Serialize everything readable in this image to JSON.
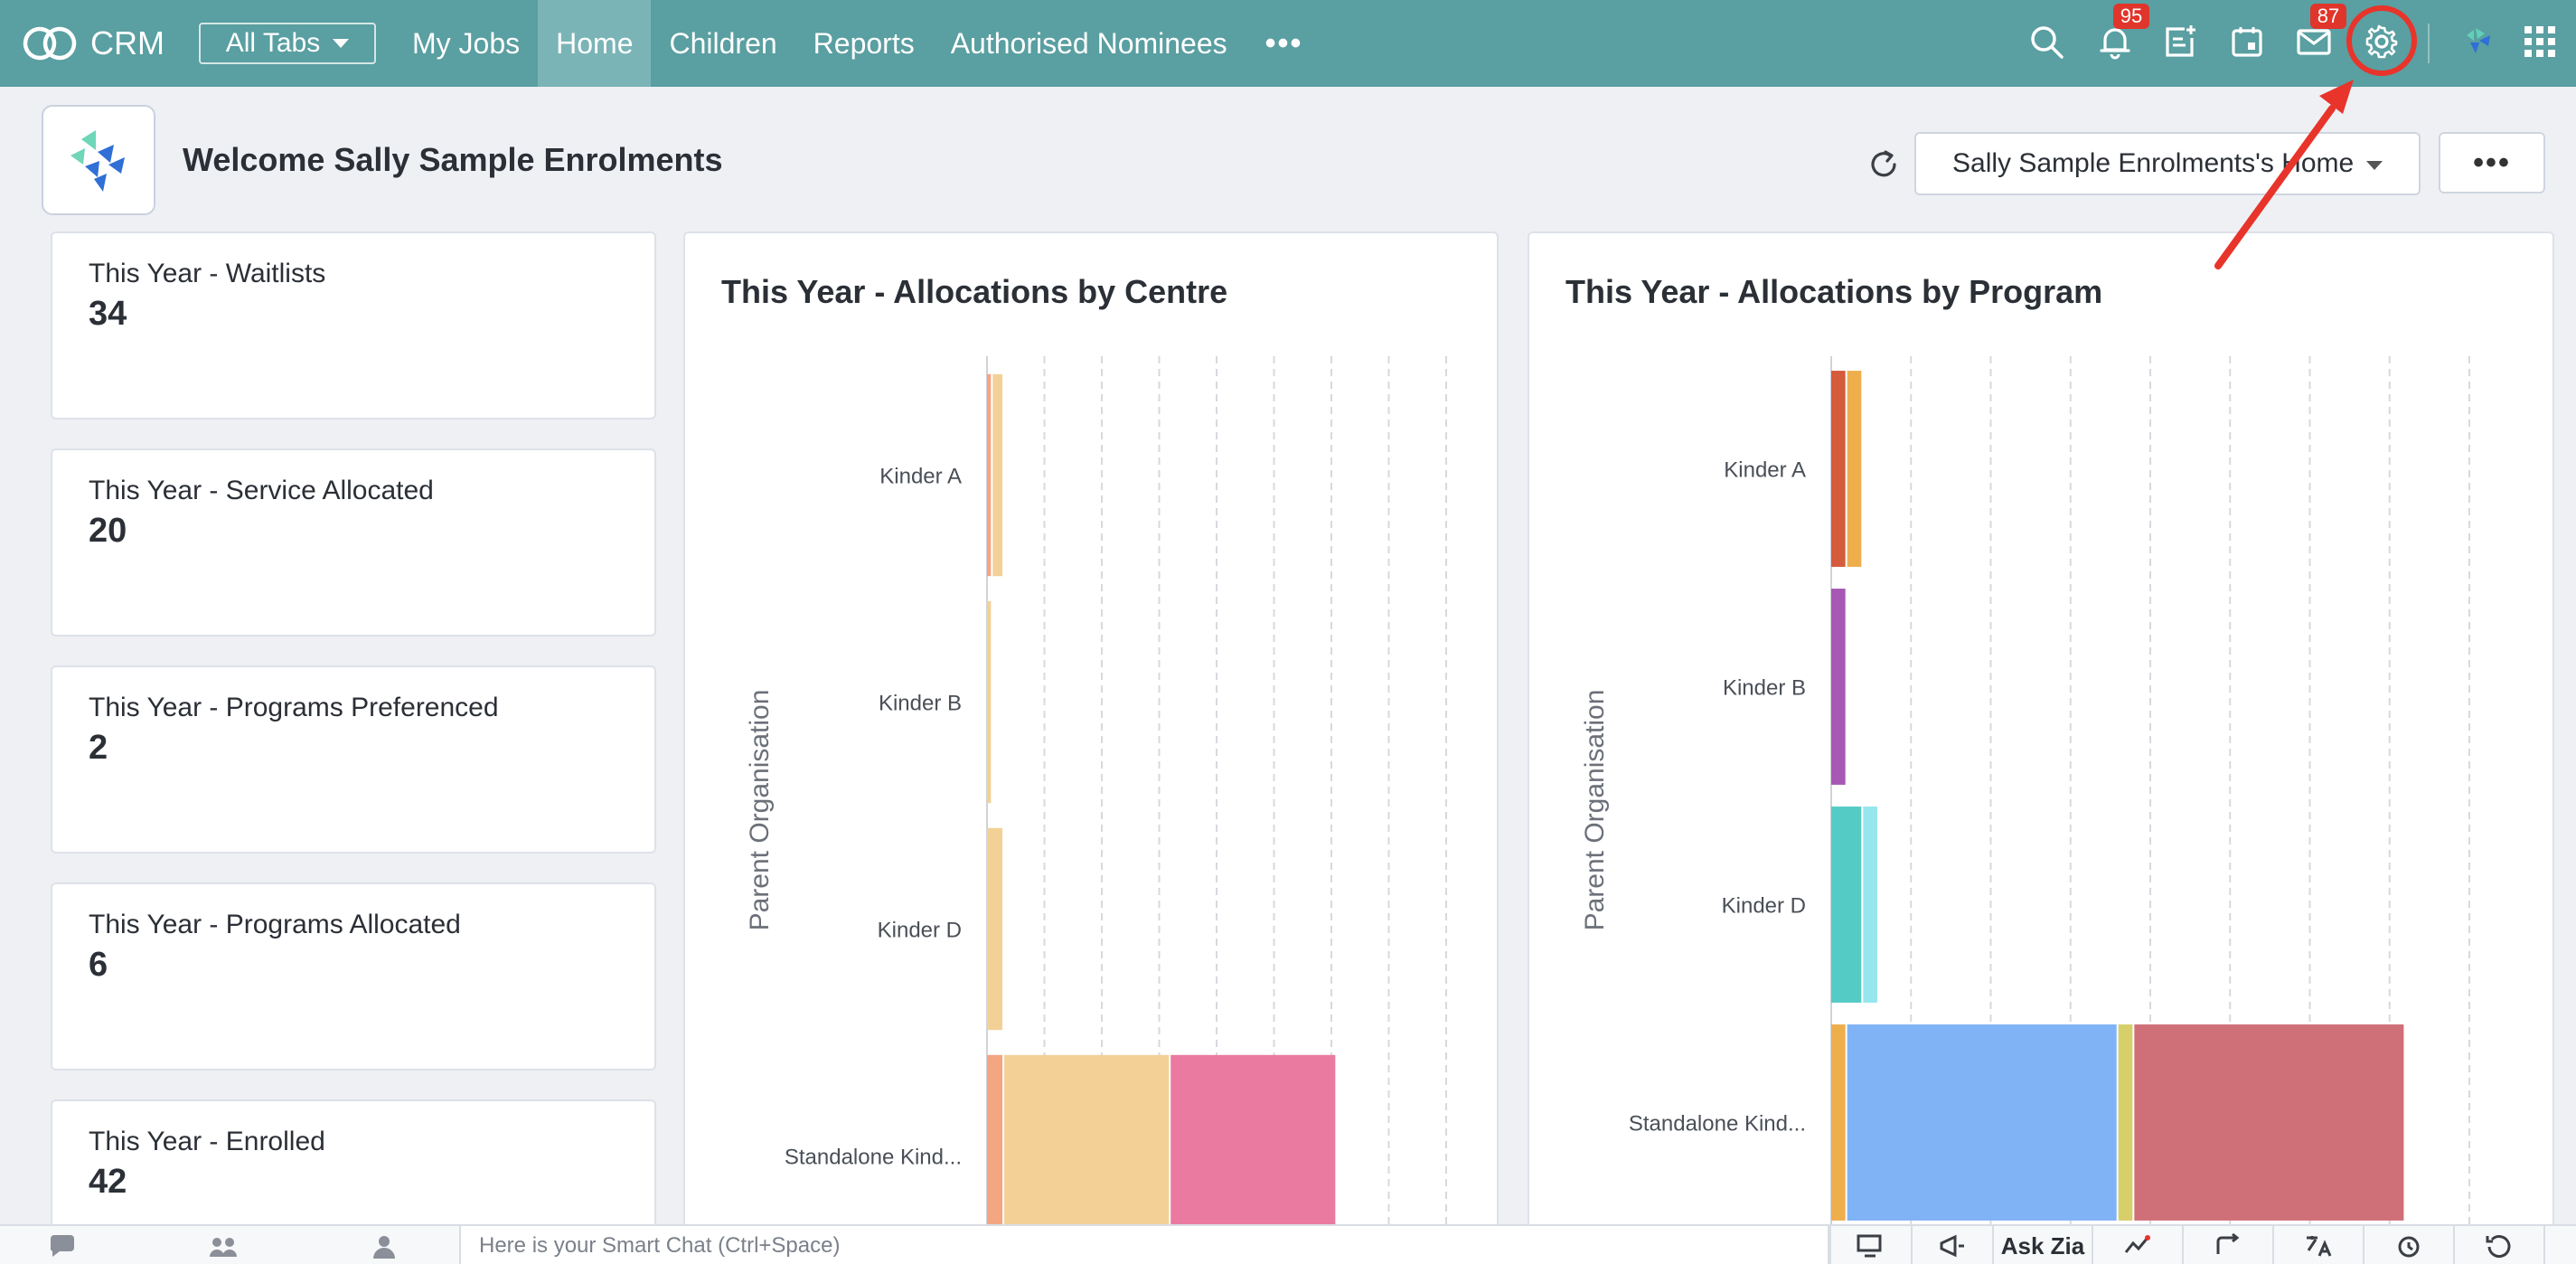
{
  "app": {
    "name": "CRM"
  },
  "nav": {
    "all_tabs": "All Tabs",
    "tabs": [
      {
        "label": "My Jobs",
        "active": false
      },
      {
        "label": "Home",
        "active": true
      },
      {
        "label": "Children",
        "active": false
      },
      {
        "label": "Reports",
        "active": false
      },
      {
        "label": "Authorised Nominees",
        "active": false
      }
    ],
    "more": "•••",
    "notifications_badge": "95",
    "mail_badge": "87"
  },
  "header": {
    "welcome": "Welcome Sally Sample Enrolments",
    "home_selector": "Sally Sample Enrolments's Home",
    "more": "•••"
  },
  "kpis": [
    {
      "label": "This Year - Waitlists",
      "value": "34"
    },
    {
      "label": "This Year - Service Allocated",
      "value": "20"
    },
    {
      "label": "This Year - Programs Preferenced",
      "value": "2"
    },
    {
      "label": "This Year - Programs Allocated",
      "value": "6"
    },
    {
      "label": "This Year - Enrolled",
      "value": "42"
    }
  ],
  "chart_data": [
    {
      "type": "bar",
      "orientation": "horizontal",
      "stacked": true,
      "title": "This Year - Allocations by Centre",
      "ylabel": "Parent Organisation",
      "categories": [
        "Kinder A",
        "Kinder B",
        "Kinder D",
        "Standalone Kind..."
      ],
      "series": [
        {
          "color": "#f4a582",
          "values": [
            1,
            0,
            0,
            3
          ]
        },
        {
          "color": "#f3d196",
          "values": [
            2,
            1,
            3,
            29
          ]
        },
        {
          "color": "#ea7aa0",
          "values": [
            0,
            0,
            0,
            29
          ]
        }
      ],
      "xlim": [
        0,
        80
      ],
      "grid": true
    },
    {
      "type": "bar",
      "orientation": "horizontal",
      "stacked": true,
      "title": "This Year - Allocations by Program",
      "ylabel": "Parent Organisation",
      "categories": [
        "Kinder A",
        "Kinder B",
        "Kinder D",
        "Standalone Kind..."
      ],
      "series": [
        {
          "color": "#d65a3c",
          "values": [
            2,
            0,
            0,
            0
          ]
        },
        {
          "color": "#eeae4c",
          "values": [
            2,
            0,
            0,
            2
          ]
        },
        {
          "color": "#a758b4",
          "values": [
            0,
            2,
            0,
            0
          ]
        },
        {
          "color": "#55cbc6",
          "values": [
            0,
            0,
            4,
            0
          ]
        },
        {
          "color": "#96e6ee",
          "values": [
            0,
            0,
            2,
            0
          ]
        },
        {
          "color": "#80b3f5",
          "values": [
            0,
            0,
            0,
            34
          ]
        },
        {
          "color": "#d6cf6a",
          "values": [
            0,
            0,
            0,
            2
          ]
        },
        {
          "color": "#cf6f77",
          "values": [
            0,
            0,
            0,
            34
          ]
        }
      ],
      "xlim": [
        0,
        80
      ],
      "grid": true
    }
  ],
  "bottom": {
    "smart_chat_placeholder": "Here is your Smart Chat (Ctrl+Space)",
    "ask_zia": "Ask Zia"
  },
  "colors": {
    "nav_bg": "#5a9fa1",
    "nav_active": "#7bb4b6",
    "badge": "#e0352b",
    "highlight": "#e8342a"
  },
  "icons": [
    "search-icon",
    "bell-icon",
    "add-note-icon",
    "calendar-icon",
    "mail-icon",
    "gear-icon",
    "zia-icon",
    "apps-grid-icon",
    "refresh-icon"
  ]
}
